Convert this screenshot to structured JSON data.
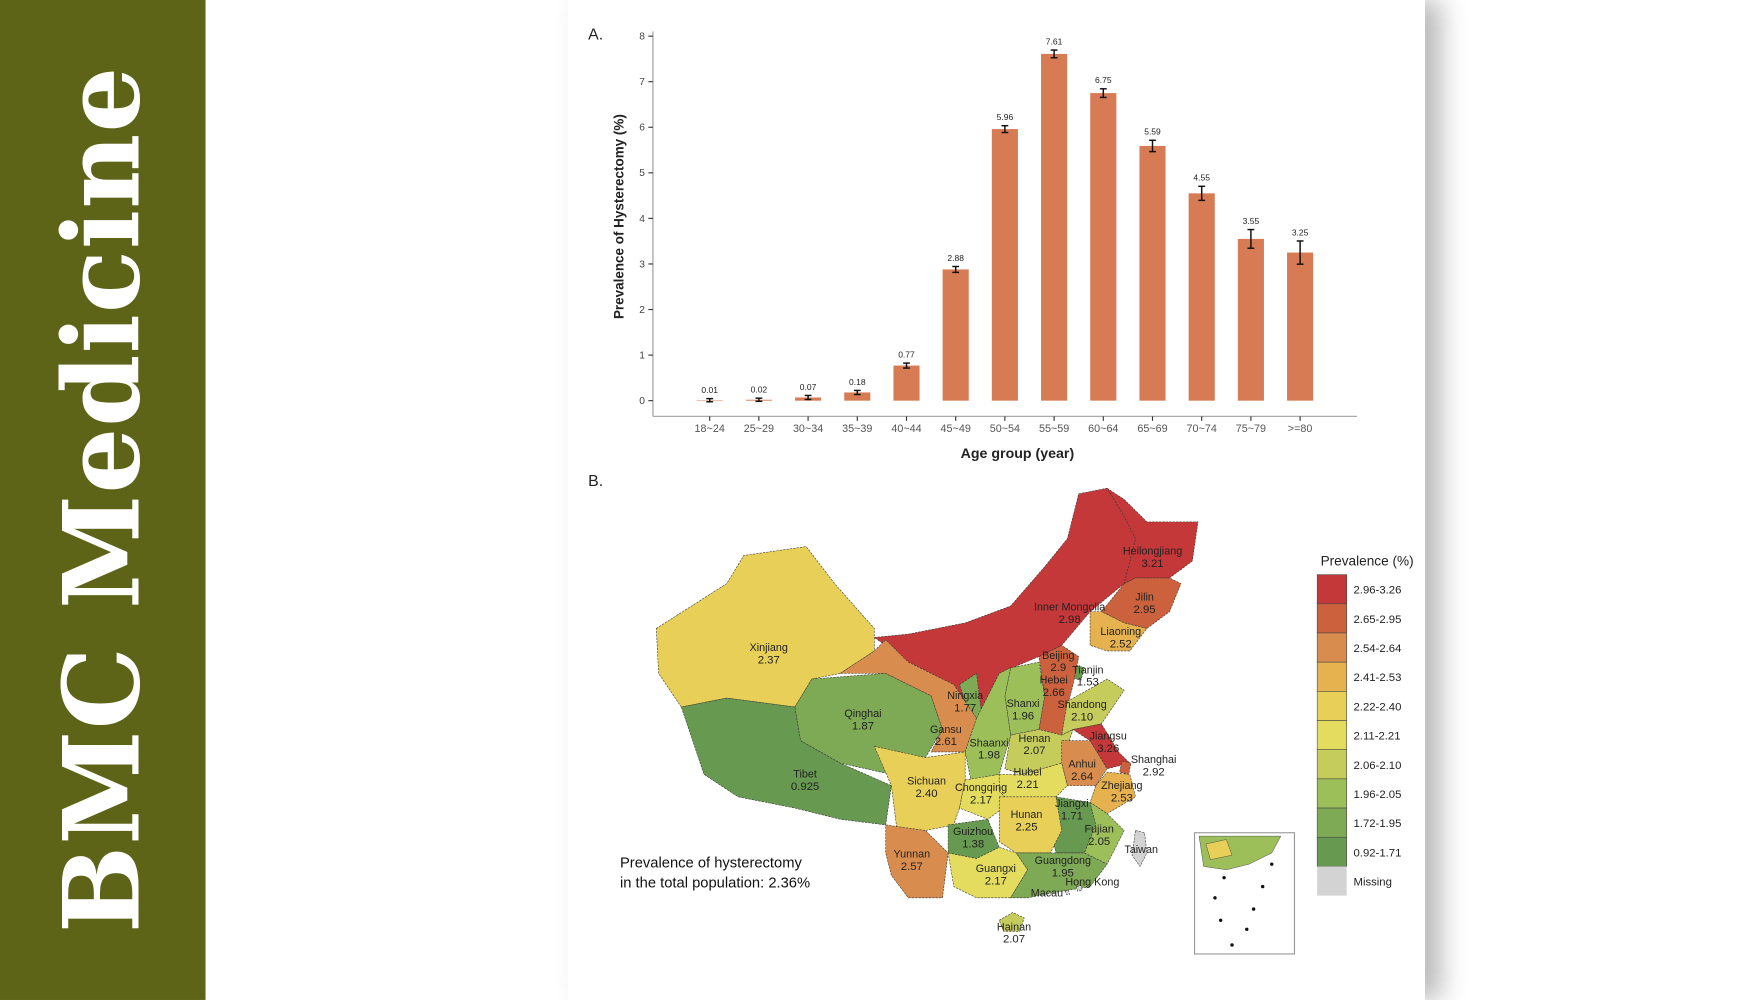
{
  "journal": {
    "name": "BMC Medicine",
    "color": "#5d6418"
  },
  "chart_data": [
    {
      "type": "bar",
      "panel_label": "A.",
      "xlabel": "Age group (year)",
      "ylabel": "Prevalence of Hysterectomy (%)",
      "ylim": [
        0,
        8
      ],
      "yticks": [
        "0",
        "1",
        "2",
        "3",
        "4",
        "5",
        "6",
        "7",
        "8"
      ],
      "categories": [
        "18~24",
        "25~29",
        "30~34",
        "35~39",
        "40~44",
        "45~49",
        "50~54",
        "55~59",
        "60~64",
        "65~69",
        "70~74",
        "75~79",
        ">=80"
      ],
      "values": [
        0.01,
        0.02,
        0.07,
        0.18,
        0.77,
        2.88,
        5.96,
        7.61,
        6.75,
        5.59,
        4.55,
        3.55,
        3.25
      ],
      "value_labels": [
        "0.01",
        "0.02",
        "0.07",
        "0.18",
        "0.77",
        "2.88",
        "5.96",
        "7.61",
        "6.75",
        "5.59",
        "4.55",
        "3.55",
        "3.25"
      ],
      "error_half_width": [
        0.01,
        0.01,
        0.02,
        0.02,
        0.03,
        0.04,
        0.05,
        0.06,
        0.07,
        0.1,
        0.13,
        0.18,
        0.23
      ],
      "bar_color": "#d67b53",
      "grid": false
    },
    {
      "type": "choropleth",
      "panel_label": "B.",
      "legend": {
        "title": "Prevalence (%)",
        "position": "right",
        "bins": [
          {
            "label": "2.96-3.26",
            "color": "#c4383a"
          },
          {
            "label": "2.65-2.95",
            "color": "#cc613d"
          },
          {
            "label": "2.54-2.64",
            "color": "#d88d4f"
          },
          {
            "label": "2.41-2.53",
            "color": "#e5b24f"
          },
          {
            "label": "2.22-2.40",
            "color": "#e8cf58"
          },
          {
            "label": "2.11-2.21",
            "color": "#e3dc5e"
          },
          {
            "label": "2.06-2.10",
            "color": "#c5cc5c"
          },
          {
            "label": "1.96-2.05",
            "color": "#9dbf5a"
          },
          {
            "label": "1.72-1.95",
            "color": "#7faa55"
          },
          {
            "label": "0.92-1.71",
            "color": "#679a50"
          },
          {
            "label": "Missing",
            "color": "#d3d3d3"
          }
        ]
      },
      "annotation": [
        "Prevalence of hysterectomy",
        "in the total population: 2.36%"
      ],
      "regions": [
        {
          "name": "Heilongjiang",
          "value": "3.21",
          "bin": 0
        },
        {
          "name": "Inner Mongolia",
          "value": "2.98",
          "bin": 0
        },
        {
          "name": "Jilin",
          "value": "2.95",
          "bin": 1
        },
        {
          "name": "Liaoning",
          "value": "2.52",
          "bin": 3
        },
        {
          "name": "Beijing",
          "value": "2.9",
          "bin": 1
        },
        {
          "name": "Tianjin",
          "value": "1.53",
          "bin": 9
        },
        {
          "name": "Hebei",
          "value": "2.66",
          "bin": 1
        },
        {
          "name": "Xinjiang",
          "value": "2.37",
          "bin": 4
        },
        {
          "name": "Qinghai",
          "value": "1.87",
          "bin": 8
        },
        {
          "name": "Ningxia",
          "value": "1.77",
          "bin": 8
        },
        {
          "name": "Shanxi",
          "value": "1.96",
          "bin": 7
        },
        {
          "name": "Shandong",
          "value": "2.10",
          "bin": 6
        },
        {
          "name": "Gansu",
          "value": "2.61",
          "bin": 2
        },
        {
          "name": "Shaanxi",
          "value": "1.98",
          "bin": 7
        },
        {
          "name": "Henan",
          "value": "2.07",
          "bin": 6
        },
        {
          "name": "Jiangsu",
          "value": "3.26",
          "bin": 0
        },
        {
          "name": "Shanghai",
          "value": "2.92",
          "bin": 1
        },
        {
          "name": "Anhui",
          "value": "2.64",
          "bin": 2
        },
        {
          "name": "Tibet",
          "value": "0.925",
          "bin": 9
        },
        {
          "name": "Sichuan",
          "value": "2.40",
          "bin": 4
        },
        {
          "name": "Chongqing",
          "value": "2.17",
          "bin": 5
        },
        {
          "name": "Hubei",
          "value": "2.21",
          "bin": 5
        },
        {
          "name": "Zhejiang",
          "value": "2.53",
          "bin": 3
        },
        {
          "name": "Jiangxi",
          "value": "1.71",
          "bin": 9
        },
        {
          "name": "Hunan",
          "value": "2.25",
          "bin": 4
        },
        {
          "name": "Fujian",
          "value": "2.05",
          "bin": 7
        },
        {
          "name": "Guizhou",
          "value": "1.38",
          "bin": 9
        },
        {
          "name": "Taiwan",
          "value": "",
          "bin": 10
        },
        {
          "name": "Yunnan",
          "value": "2.57",
          "bin": 2
        },
        {
          "name": "Guangxi",
          "value": "2.17",
          "bin": 5
        },
        {
          "name": "Guangdong",
          "value": "1.95",
          "bin": 8
        },
        {
          "name": "Hong Kong",
          "value": "",
          "bin": 10
        },
        {
          "name": "Macau",
          "value": "",
          "bin": 10
        },
        {
          "name": "Hainan",
          "value": "2.07",
          "bin": 6
        }
      ]
    }
  ]
}
